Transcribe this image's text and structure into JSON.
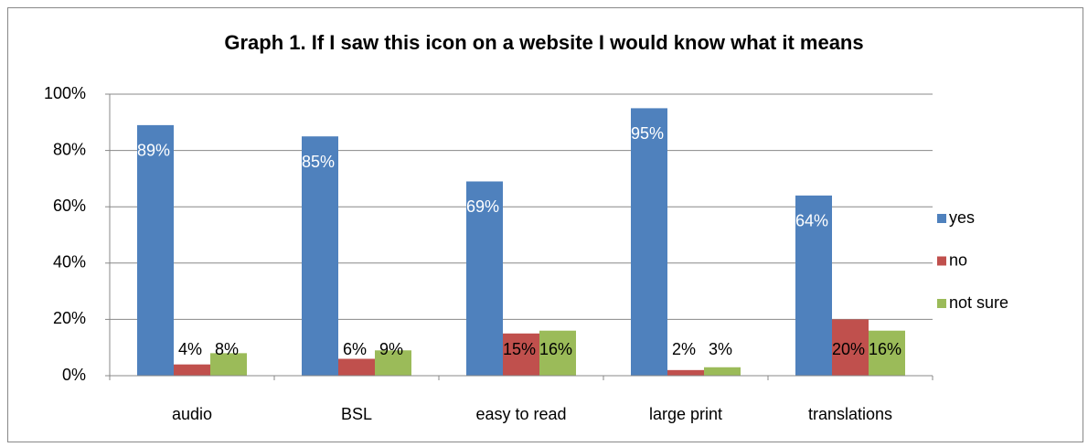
{
  "chart_data": {
    "type": "bar",
    "title": "Graph 1. If I saw this icon on a website I would know what it means",
    "categories": [
      "audio",
      "BSL",
      "easy to read",
      "large print",
      "translations"
    ],
    "series": [
      {
        "name": "yes",
        "color": "#4f81bd",
        "values": [
          89,
          85,
          69,
          95,
          64
        ],
        "value_labels": [
          "89%",
          "85%",
          "69%",
          "95%",
          "64%"
        ]
      },
      {
        "name": "no",
        "color": "#c0504d",
        "values": [
          4,
          6,
          15,
          2,
          20
        ],
        "value_labels": [
          "4%",
          "6%",
          "15%",
          "2%",
          "20%"
        ]
      },
      {
        "name": "not sure",
        "color": "#9bbb59",
        "values": [
          8,
          9,
          16,
          3,
          16
        ],
        "value_labels": [
          "8%",
          "9%",
          "16%",
          "3%",
          "16%"
        ]
      }
    ],
    "ylim": [
      0,
      100
    ],
    "yticks": [
      {
        "value": 0,
        "label": "0%"
      },
      {
        "value": 20,
        "label": "20%"
      },
      {
        "value": 40,
        "label": "40%"
      },
      {
        "value": 60,
        "label": "60%"
      },
      {
        "value": 80,
        "label": "80%"
      },
      {
        "value": 100,
        "label": "100%"
      }
    ],
    "grid": true,
    "legend": "right"
  }
}
